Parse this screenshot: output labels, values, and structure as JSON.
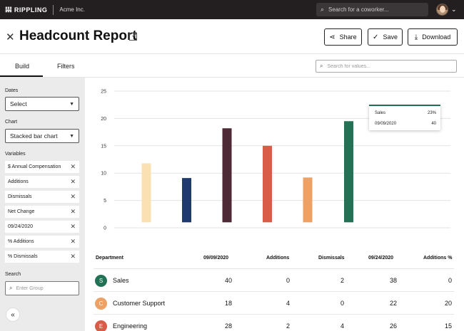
{
  "topbar": {
    "logo_mark": "𝍐",
    "brand": "RIPPLING",
    "company": "Acme Inc.",
    "search_placeholder": "Search for a coworker...",
    "menu_caret": "⌄"
  },
  "header": {
    "title": "Headcount Report",
    "share_label": "Share",
    "save_label": "Save",
    "download_label": "Download"
  },
  "tabs": {
    "build": "Build",
    "filters": "Filters"
  },
  "value_search_placeholder": "Search for values...",
  "sidebar": {
    "dates_label": "Dates",
    "dates_value": "Select",
    "chart_label": "Chart",
    "chart_value": "Stacked bar chart",
    "variables_label": "Variables",
    "variables": [
      "$ Annual Compensation",
      "Additions",
      "Dismissals",
      "Net Change",
      "09/24/2020",
      "% Additions",
      "% Dismissals"
    ],
    "search_label": "Search",
    "search_placeholder": "Enter Group",
    "collapse_glyph": "«"
  },
  "chart_data": {
    "type": "bar",
    "ylim": [
      0,
      25
    ],
    "yticks": [
      "0",
      "5",
      "10",
      "15",
      "20",
      "25"
    ],
    "grid": true,
    "bars": [
      {
        "base": 1,
        "top": 11.8,
        "color": "#fbe0b3"
      },
      {
        "base": 1,
        "top": 9.1,
        "color": "#1f3a6e"
      },
      {
        "base": 1,
        "top": 18.2,
        "color": "#4d2a35"
      },
      {
        "base": 1,
        "top": 15,
        "color": "#d85c48"
      },
      {
        "base": 1,
        "top": 9.2,
        "color": "#eea164"
      },
      {
        "base": 1,
        "top": 19.5,
        "color": "#237255"
      }
    ]
  },
  "tooltip": {
    "label": "Sales",
    "pct": "23%",
    "date": "09/09/2020",
    "value": "40",
    "accent": "#226f54"
  },
  "table": {
    "headers": [
      "Department",
      "09/09/2020",
      "Additions",
      "Dismissals",
      "09/24/2020",
      "Additions %"
    ],
    "rows": [
      {
        "initial": "S",
        "color": "#237255",
        "name": "Sales",
        "cells": [
          "40",
          "0",
          "2",
          "38",
          "0"
        ]
      },
      {
        "initial": "C",
        "color": "#eea164",
        "name": "Customer Support",
        "cells": [
          "18",
          "4",
          "0",
          "22",
          "20"
        ]
      },
      {
        "initial": "E",
        "color": "#d85c48",
        "name": "Engineering",
        "cells": [
          "28",
          "2",
          "4",
          "26",
          "15"
        ]
      }
    ]
  }
}
